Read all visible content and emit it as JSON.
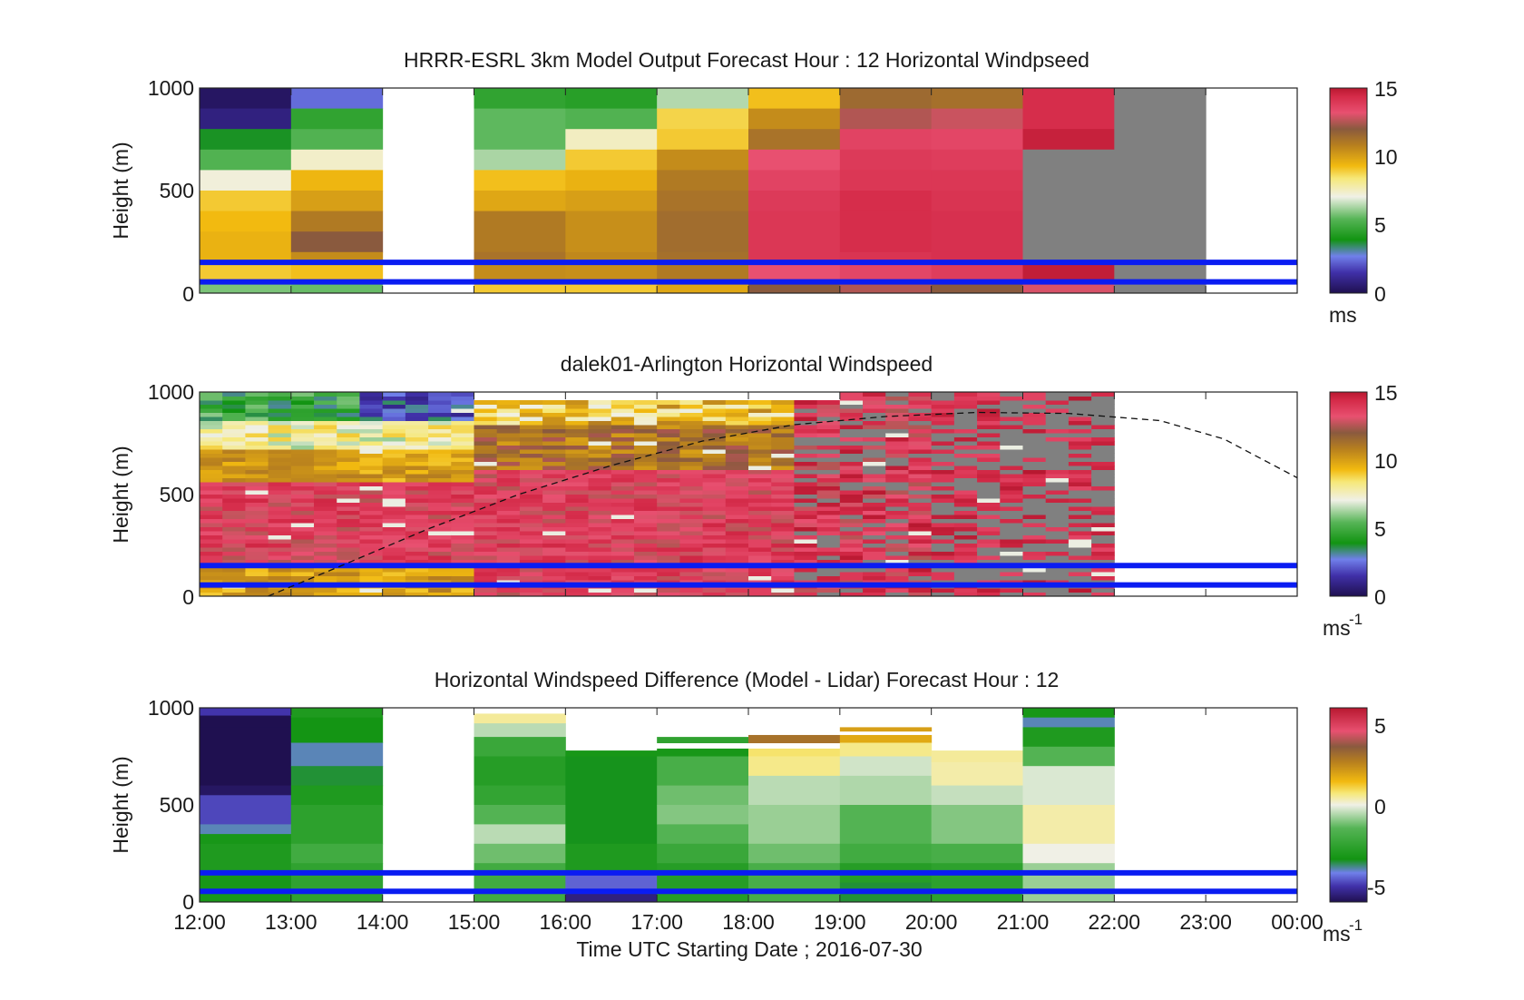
{
  "figure": {
    "xlabel": "Time UTC  Starting Date ; 2016-07-30",
    "x_ticks": [
      "12:00",
      "13:00",
      "14:00",
      "15:00",
      "16:00",
      "17:00",
      "18:00",
      "19:00",
      "20:00",
      "21:00",
      "22:00",
      "23:00",
      "00:00"
    ],
    "hlines_m": [
      150,
      55
    ],
    "hline_color": "#0a1cf2"
  },
  "chart_data": [
    {
      "type": "heatmap",
      "title": "HRRR-ESRL 3km Model Output   Forecast Hour : 12 Horizontal Windpseed",
      "ylabel": "Height (m)",
      "ylim": [
        0,
        1000
      ],
      "y_ticks": [
        "1000",
        "500",
        "0"
      ],
      "cbar_range": [
        0,
        15
      ],
      "cbar_ticks": [
        "15",
        "10",
        "5",
        "0"
      ],
      "cbar_unit": "ms",
      "cbar_unit_sup": "",
      "cols": [
        {
          "x0": 0,
          "x1": 1,
          "cells": [
            [
              900,
              1000,
              0.3
            ],
            [
              800,
              900,
              0.8
            ],
            [
              700,
              800,
              3.8
            ],
            [
              600,
              700,
              5.3
            ],
            [
              500,
              600,
              7.2
            ],
            [
              400,
              500,
              9.0
            ],
            [
              300,
              400,
              9.3
            ],
            [
              150,
              300,
              9.5
            ],
            [
              50,
              150,
              9.0
            ],
            [
              0,
              50,
              5.8
            ]
          ]
        },
        {
          "x0": 1,
          "x1": 2,
          "cells": [
            [
              900,
              1000,
              2.4
            ],
            [
              800,
              900,
              4.6
            ],
            [
              700,
              800,
              5.3
            ],
            [
              600,
              700,
              7.4
            ],
            [
              500,
              600,
              9.4
            ],
            [
              400,
              500,
              10.0
            ],
            [
              300,
              400,
              11.0
            ],
            [
              200,
              300,
              12.0
            ],
            [
              150,
              200,
              10.5
            ],
            [
              50,
              150,
              9.2
            ],
            [
              0,
              50,
              5.6
            ]
          ]
        },
        {
          "x0": 3,
          "x1": 4,
          "cells": [
            [
              900,
              1000,
              4.6
            ],
            [
              700,
              900,
              5.5
            ],
            [
              600,
              700,
              6.3
            ],
            [
              500,
              600,
              9.2
            ],
            [
              400,
              500,
              9.8
            ],
            [
              200,
              400,
              11.0
            ],
            [
              150,
              200,
              11.2
            ],
            [
              50,
              150,
              10.5
            ],
            [
              0,
              50,
              9.0
            ]
          ]
        },
        {
          "x0": 4,
          "x1": 5,
          "cells": [
            [
              900,
              1000,
              4.4
            ],
            [
              800,
              900,
              5.3
            ],
            [
              700,
              800,
              7.5
            ],
            [
              600,
              700,
              9.0
            ],
            [
              500,
              600,
              9.5
            ],
            [
              400,
              500,
              10.0
            ],
            [
              200,
              400,
              10.4
            ],
            [
              150,
              200,
              10.6
            ],
            [
              50,
              150,
              10.4
            ],
            [
              0,
              50,
              9.0
            ]
          ]
        },
        {
          "x0": 5,
          "x1": 6,
          "cells": [
            [
              900,
              1000,
              6.4
            ],
            [
              800,
              900,
              8.8
            ],
            [
              700,
              800,
              9.0
            ],
            [
              600,
              700,
              10.5
            ],
            [
              500,
              600,
              11.0
            ],
            [
              400,
              500,
              11.2
            ],
            [
              200,
              400,
              11.4
            ],
            [
              150,
              200,
              11.3
            ],
            [
              50,
              150,
              11.0
            ],
            [
              0,
              50,
              9.8
            ]
          ]
        },
        {
          "x0": 6,
          "x1": 7,
          "cells": [
            [
              900,
              1000,
              9.2
            ],
            [
              800,
              900,
              10.5
            ],
            [
              700,
              800,
              11.2
            ],
            [
              600,
              700,
              13.2
            ],
            [
              500,
              600,
              13.6
            ],
            [
              400,
              500,
              13.9
            ],
            [
              200,
              400,
              14.0
            ],
            [
              150,
              200,
              14.0
            ],
            [
              50,
              150,
              13.2
            ],
            [
              0,
              50,
              12.0
            ]
          ]
        },
        {
          "x0": 7,
          "x1": 8,
          "cells": [
            [
              900,
              1000,
              11.5
            ],
            [
              800,
              900,
              12.5
            ],
            [
              700,
              800,
              13.6
            ],
            [
              600,
              700,
              13.9
            ],
            [
              500,
              600,
              14.0
            ],
            [
              400,
              500,
              14.3
            ],
            [
              200,
              400,
              14.3
            ],
            [
              150,
              200,
              14.1
            ],
            [
              50,
              150,
              13.5
            ],
            [
              0,
              50,
              12.5
            ]
          ]
        },
        {
          "x0": 8,
          "x1": 9,
          "cells": [
            [
              900,
              1000,
              11.3
            ],
            [
              800,
              900,
              12.8
            ],
            [
              700,
              800,
              13.5
            ],
            [
              600,
              700,
              13.8
            ],
            [
              500,
              600,
              14.0
            ],
            [
              400,
              500,
              14.1
            ],
            [
              200,
              400,
              14.2
            ],
            [
              150,
              200,
              14.2
            ],
            [
              50,
              150,
              13.8
            ],
            [
              0,
              50,
              12.0
            ]
          ]
        },
        {
          "x0": 9,
          "x1": 10,
          "cells": [
            [
              800,
              1000,
              14.3
            ],
            [
              700,
              800,
              14.7
            ],
            [
              150,
              700,
              -1
            ],
            [
              50,
              150,
              14.8
            ],
            [
              0,
              50,
              13.0
            ]
          ]
        },
        {
          "x0": 10,
          "x1": 11,
          "cells": [
            [
              0,
              1000,
              -1
            ]
          ]
        }
      ]
    },
    {
      "type": "heatmap",
      "title": "dalek01-Arlington  Horizontal Windspeed",
      "ylabel": "Height (m)",
      "ylim": [
        0,
        1000
      ],
      "y_ticks": [
        "1000",
        "500",
        "0"
      ],
      "cbar_range": [
        0,
        15
      ],
      "cbar_ticks": [
        "15",
        "10",
        "5",
        "0"
      ],
      "cbar_unit": "ms",
      "cbar_unit_sup": "-1",
      "dashed_curve": [
        [
          0.75,
          0
        ],
        [
          1.5,
          140
        ],
        [
          2.5,
          330
        ],
        [
          3.5,
          500
        ],
        [
          4.5,
          640
        ],
        [
          5.5,
          760
        ],
        [
          6.5,
          840
        ],
        [
          7.5,
          880
        ],
        [
          8.5,
          900
        ],
        [
          9.5,
          895
        ],
        [
          10.5,
          860
        ],
        [
          11.2,
          770
        ],
        [
          12,
          580
        ]
      ],
      "lidar_x1": 9.8
    },
    {
      "type": "heatmap",
      "title": "Horizontal Windspeed Difference (Model - Lidar) Forecast Hour : 12",
      "ylabel": "Height (m)",
      "ylim": [
        0,
        1000
      ],
      "y_ticks": [
        "1000",
        "500",
        "0"
      ],
      "cbar_range": [
        -6,
        6
      ],
      "cbar_ticks": [
        "5",
        "0",
        "-5"
      ],
      "cbar_unit": "ms",
      "cbar_unit_sup": "-1",
      "cols": [
        {
          "x0": 0,
          "x1": 1,
          "cells": [
            [
              960,
              1000,
              -5.0
            ],
            [
              900,
              960,
              -6.0
            ],
            [
              600,
              900,
              -6.3
            ],
            [
              550,
              600,
              -5.8
            ],
            [
              400,
              550,
              -4.8
            ],
            [
              350,
              400,
              -4.0
            ],
            [
              300,
              350,
              -3.2
            ],
            [
              150,
              300,
              -3.0
            ],
            [
              0,
              150,
              -3.2
            ]
          ]
        },
        {
          "x0": 1,
          "x1": 2,
          "cells": [
            [
              950,
              1000,
              -3.0
            ],
            [
              820,
              950,
              -3.3
            ],
            [
              700,
              820,
              -4.0
            ],
            [
              600,
              700,
              -3.5
            ],
            [
              500,
              600,
              -3.0
            ],
            [
              300,
              500,
              -2.6
            ],
            [
              200,
              300,
              -2.0
            ],
            [
              0,
              200,
              -2.5
            ]
          ]
        },
        {
          "x0": 3,
          "x1": 4,
          "cells": [
            [
              920,
              970,
              0.5
            ],
            [
              850,
              920,
              -0.5
            ],
            [
              750,
              850,
              -2.2
            ],
            [
              600,
              750,
              -2.8
            ],
            [
              500,
              600,
              -2.4
            ],
            [
              400,
              500,
              -1.5
            ],
            [
              300,
              400,
              -0.5
            ],
            [
              200,
              300,
              -1.2
            ],
            [
              0,
              200,
              -2.0
            ]
          ]
        },
        {
          "x0": 4,
          "x1": 5,
          "cells": [
            [
              750,
              780,
              -3.2
            ],
            [
              300,
              750,
              -3.4
            ],
            [
              150,
              300,
              -3.0
            ],
            [
              50,
              150,
              -4.5
            ],
            [
              0,
              50,
              -5.5
            ]
          ]
        },
        {
          "x0": 5,
          "x1": 6,
          "cells": [
            [
              820,
              850,
              -2.5
            ],
            [
              750,
              790,
              -3.2
            ],
            [
              600,
              750,
              -1.8
            ],
            [
              500,
              600,
              -1.2
            ],
            [
              400,
              500,
              -1.0
            ],
            [
              300,
              400,
              -1.5
            ],
            [
              200,
              300,
              -2.2
            ],
            [
              0,
              200,
              -2.8
            ]
          ]
        },
        {
          "x0": 6,
          "x1": 7,
          "cells": [
            [
              820,
              860,
              3.0
            ],
            [
              750,
              790,
              0.8
            ],
            [
              650,
              750,
              0.6
            ],
            [
              500,
              650,
              -0.5
            ],
            [
              300,
              500,
              -0.8
            ],
            [
              200,
              300,
              -1.2
            ],
            [
              0,
              200,
              -1.8
            ]
          ]
        },
        {
          "x0": 7,
          "x1": 8,
          "cells": [
            [
              880,
              900,
              2.0
            ],
            [
              820,
              860,
              1.8
            ],
            [
              750,
              820,
              0.6
            ],
            [
              650,
              750,
              -0.3
            ],
            [
              500,
              650,
              -0.6
            ],
            [
              300,
              500,
              -1.5
            ],
            [
              200,
              300,
              -2.0
            ],
            [
              100,
              200,
              -2.8
            ],
            [
              0,
              100,
              -3.5
            ]
          ]
        },
        {
          "x0": 8,
          "x1": 9,
          "cells": [
            [
              720,
              780,
              0.5
            ],
            [
              600,
              720,
              0.4
            ],
            [
              500,
              600,
              -0.4
            ],
            [
              300,
              500,
              -1.0
            ],
            [
              200,
              300,
              -1.8
            ],
            [
              0,
              200,
              -2.6
            ]
          ]
        },
        {
          "x0": 9,
          "x1": 10,
          "cells": [
            [
              950,
              1000,
              -3.2
            ],
            [
              900,
              950,
              -4.0
            ],
            [
              800,
              900,
              -3.0
            ],
            [
              700,
              800,
              -1.5
            ],
            [
              500,
              700,
              -0.2
            ],
            [
              300,
              500,
              0.4
            ],
            [
              200,
              300,
              0.0
            ],
            [
              0,
              200,
              -0.8
            ]
          ]
        }
      ]
    }
  ]
}
